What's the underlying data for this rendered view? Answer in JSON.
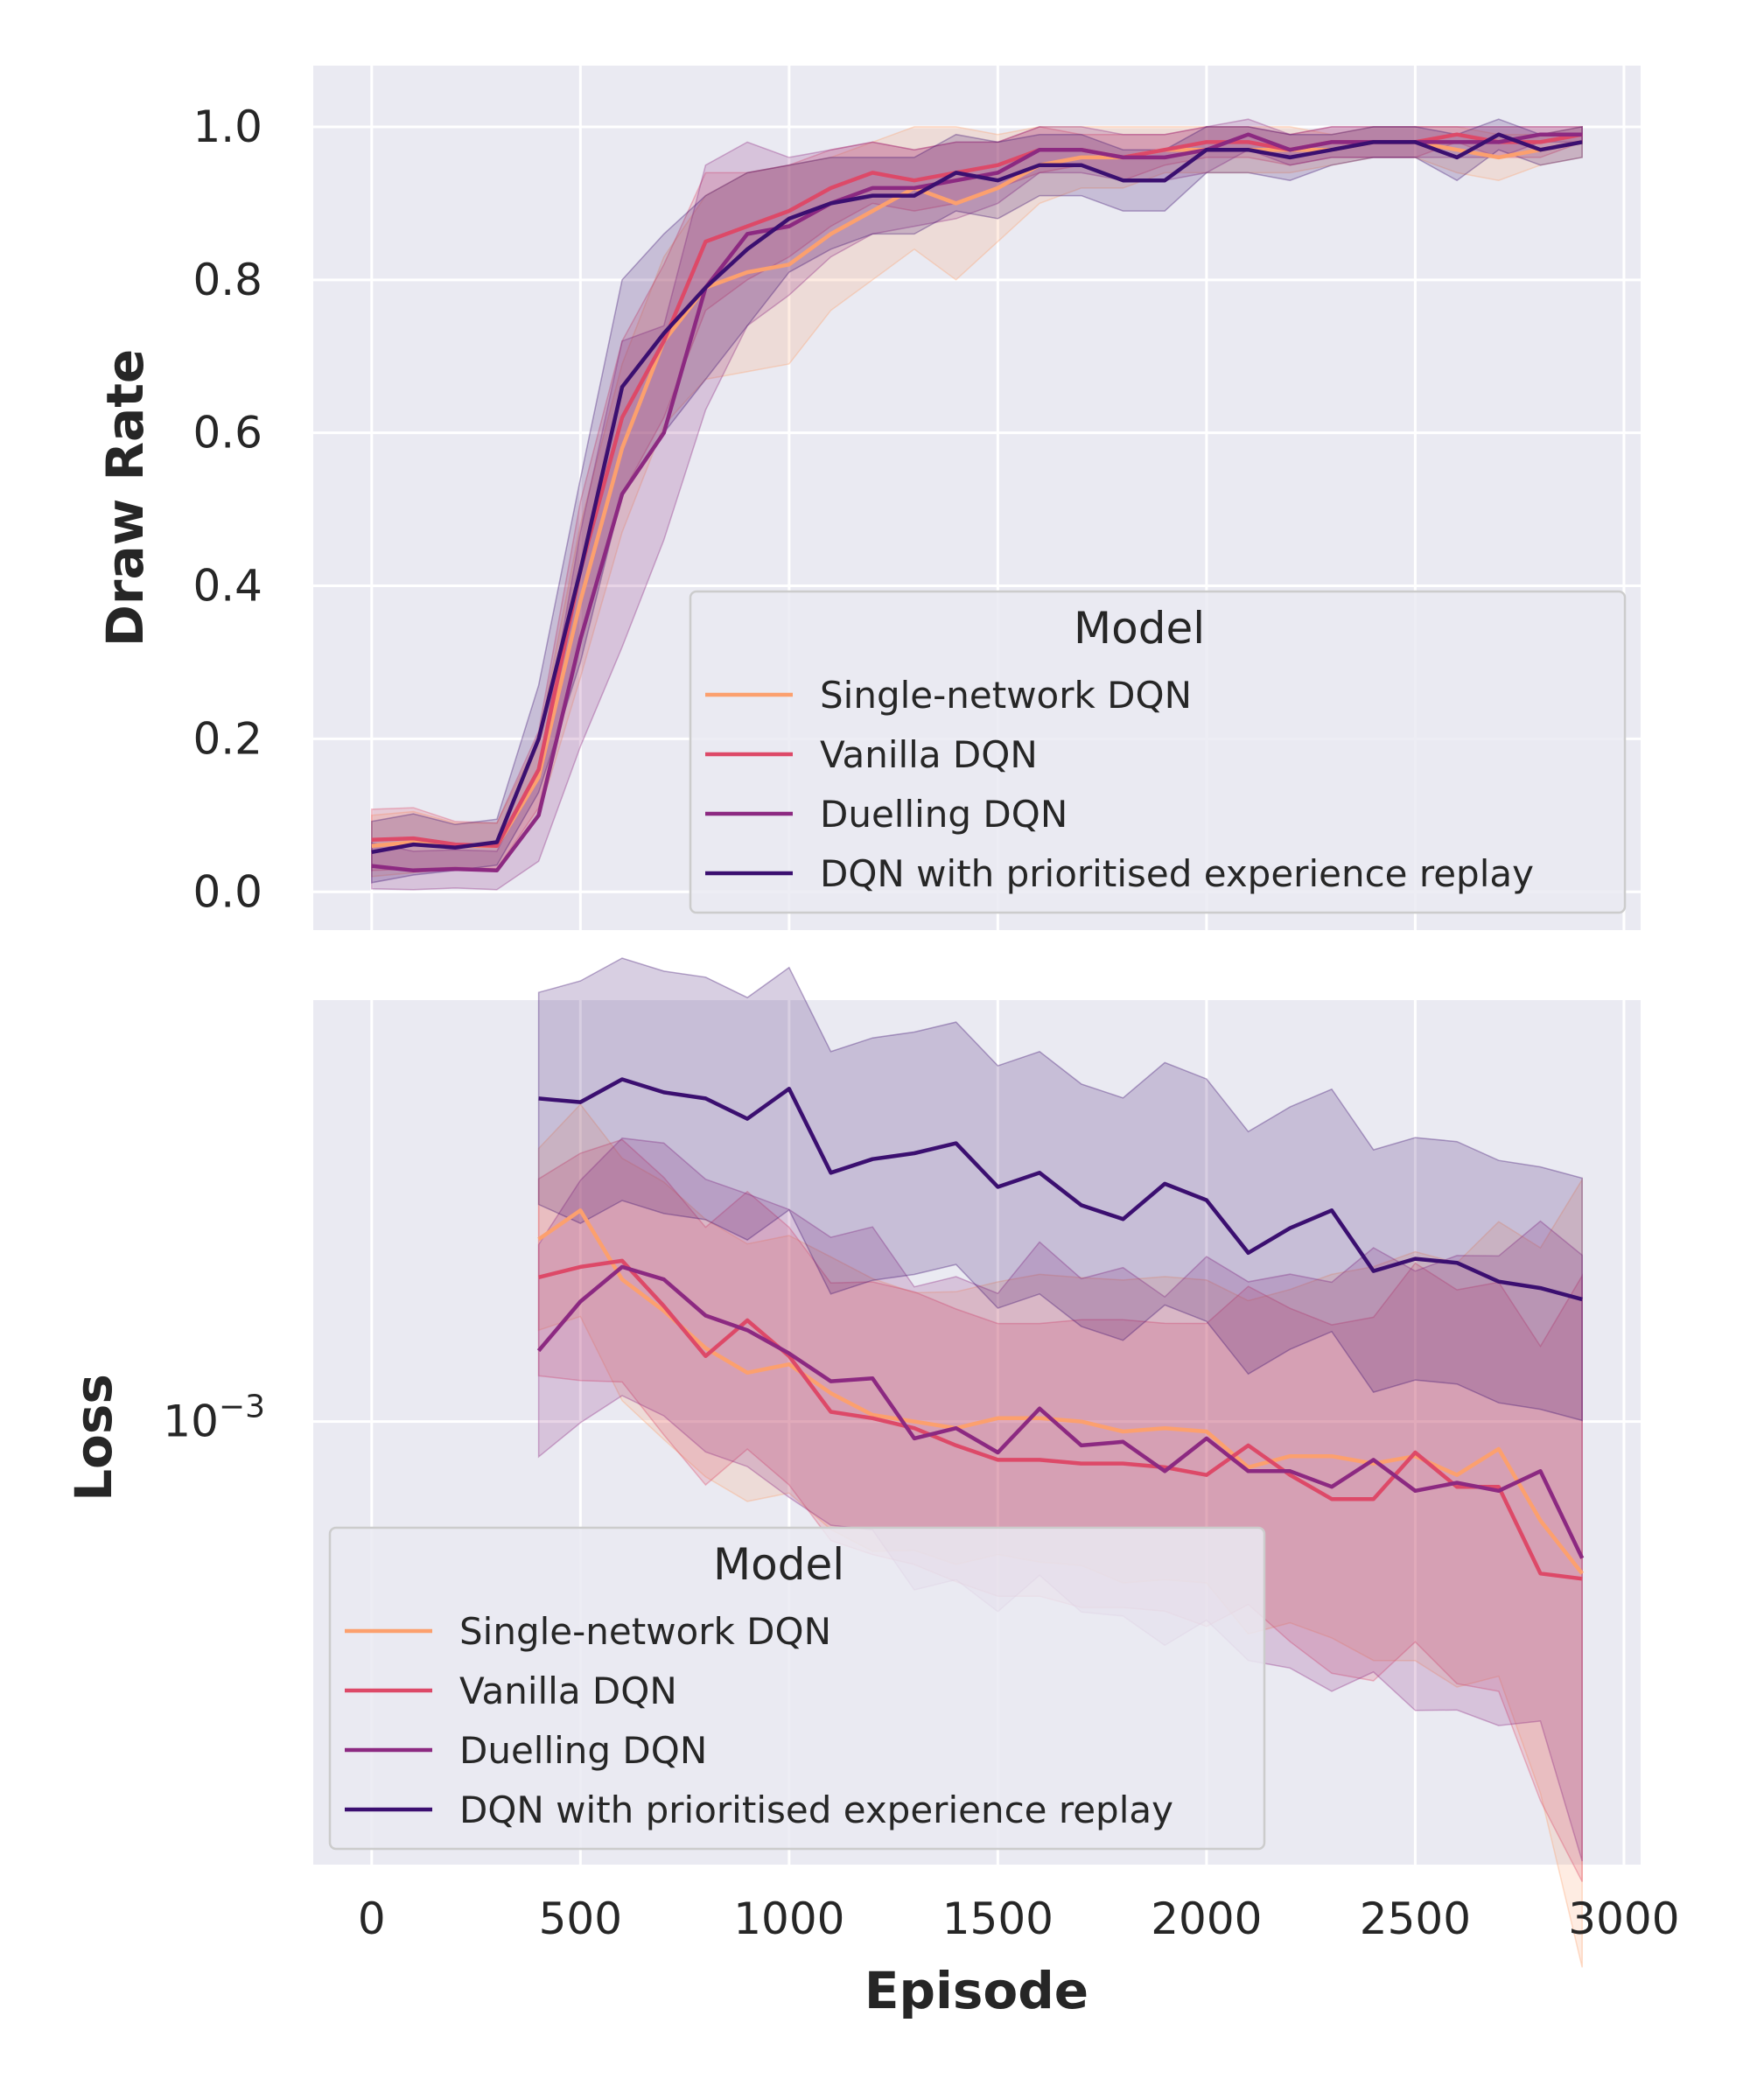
{
  "figure": {
    "xlabel": "Episode",
    "x_ticks": [
      "0",
      "500",
      "1000",
      "1500",
      "2000",
      "2500",
      "3000"
    ]
  },
  "chart_data": [
    {
      "type": "line",
      "panel": "top",
      "title": "",
      "xlabel": "Episode",
      "ylabel": "Draw Rate",
      "xlim": [
        -140,
        3040
      ],
      "ylim": [
        -0.05,
        1.08
      ],
      "y_ticks": [
        "0.0",
        "0.2",
        "0.4",
        "0.6",
        "0.8",
        "1.0"
      ],
      "grid": true,
      "legend": {
        "title": "Model",
        "placement": "lower-right"
      },
      "x": [
        0,
        100,
        200,
        300,
        400,
        500,
        600,
        700,
        800,
        900,
        1000,
        1100,
        1200,
        1300,
        1400,
        1500,
        1600,
        1700,
        1800,
        1900,
        2000,
        2100,
        2200,
        2300,
        2400,
        2500,
        2600,
        2700,
        2800,
        2900
      ],
      "series": [
        {
          "name": "Single-network DQN",
          "color": "#fca06e",
          "values": [
            0.06,
            0.065,
            0.06,
            0.06,
            0.15,
            0.38,
            0.58,
            0.72,
            0.79,
            0.81,
            0.82,
            0.86,
            0.89,
            0.92,
            0.9,
            0.92,
            0.95,
            0.96,
            0.96,
            0.97,
            0.97,
            0.97,
            0.97,
            0.97,
            0.98,
            0.98,
            0.97,
            0.96,
            0.97,
            0.98
          ],
          "band": [
            0.04,
            0.04,
            0.03,
            0.03,
            0.05,
            0.1,
            0.11,
            0.11,
            0.12,
            0.13,
            0.13,
            0.1,
            0.09,
            0.08,
            0.1,
            0.07,
            0.05,
            0.04,
            0.04,
            0.03,
            0.03,
            0.03,
            0.03,
            0.02,
            0.02,
            0.02,
            0.03,
            0.03,
            0.02,
            0.02
          ]
        },
        {
          "name": "Vanilla DQN",
          "color": "#dd4968",
          "values": [
            0.068,
            0.07,
            0.062,
            0.06,
            0.16,
            0.42,
            0.62,
            0.72,
            0.85,
            0.87,
            0.89,
            0.92,
            0.94,
            0.93,
            0.94,
            0.95,
            0.97,
            0.97,
            0.96,
            0.97,
            0.98,
            0.98,
            0.97,
            0.98,
            0.98,
            0.98,
            0.99,
            0.98,
            0.98,
            0.99
          ],
          "band": [
            0.04,
            0.04,
            0.03,
            0.03,
            0.05,
            0.09,
            0.1,
            0.1,
            0.09,
            0.07,
            0.06,
            0.05,
            0.04,
            0.04,
            0.04,
            0.03,
            0.03,
            0.02,
            0.03,
            0.02,
            0.02,
            0.02,
            0.02,
            0.02,
            0.02,
            0.02,
            0.01,
            0.02,
            0.02,
            0.01
          ]
        },
        {
          "name": "Duelling DQN",
          "color": "#8c2981",
          "values": [
            0.034,
            0.028,
            0.03,
            0.028,
            0.1,
            0.33,
            0.52,
            0.6,
            0.79,
            0.86,
            0.87,
            0.9,
            0.92,
            0.92,
            0.93,
            0.94,
            0.97,
            0.97,
            0.96,
            0.96,
            0.97,
            0.99,
            0.97,
            0.98,
            0.98,
            0.98,
            0.98,
            0.98,
            0.99,
            0.99
          ],
          "band": [
            0.03,
            0.025,
            0.025,
            0.025,
            0.06,
            0.14,
            0.2,
            0.14,
            0.16,
            0.12,
            0.09,
            0.07,
            0.06,
            0.05,
            0.05,
            0.04,
            0.03,
            0.03,
            0.03,
            0.03,
            0.03,
            0.02,
            0.02,
            0.02,
            0.02,
            0.02,
            0.02,
            0.02,
            0.01,
            0.01
          ]
        },
        {
          "name": "DQN with prioritised experience replay",
          "color": "#3b0f70",
          "values": [
            0.052,
            0.062,
            0.058,
            0.065,
            0.2,
            0.42,
            0.66,
            0.73,
            0.79,
            0.84,
            0.88,
            0.9,
            0.91,
            0.91,
            0.94,
            0.93,
            0.95,
            0.95,
            0.93,
            0.93,
            0.97,
            0.97,
            0.96,
            0.97,
            0.98,
            0.98,
            0.96,
            0.99,
            0.97,
            0.98
          ],
          "band": [
            0.04,
            0.04,
            0.03,
            0.03,
            0.07,
            0.12,
            0.14,
            0.13,
            0.12,
            0.1,
            0.07,
            0.06,
            0.05,
            0.05,
            0.05,
            0.05,
            0.04,
            0.04,
            0.04,
            0.04,
            0.03,
            0.03,
            0.03,
            0.02,
            0.02,
            0.02,
            0.03,
            0.02,
            0.02,
            0.02
          ]
        }
      ]
    },
    {
      "type": "line",
      "panel": "bottom",
      "title": "",
      "xlabel": "Episode",
      "ylabel": "Loss",
      "yscale": "log",
      "xlim": [
        -140,
        3040
      ],
      "ylim": [
        0.00026,
        0.0036
      ],
      "y_ticks": [
        {
          "value": 0.001,
          "base": "10",
          "exponent": "−3"
        }
      ],
      "grid": true,
      "legend": {
        "title": "Model",
        "placement": "lower-left"
      },
      "x": [
        400,
        500,
        600,
        700,
        800,
        900,
        1000,
        1100,
        1200,
        1300,
        1400,
        1500,
        1600,
        1700,
        1800,
        1900,
        2000,
        2100,
        2200,
        2300,
        2400,
        2500,
        2600,
        2700,
        2800,
        2900
      ],
      "series": [
        {
          "name": "Single-network DQN",
          "color": "#fca06e",
          "values": [
            0.00174,
            0.0019,
            0.00154,
            0.0014,
            0.00125,
            0.00116,
            0.00119,
            0.00109,
            0.00102,
            0.001,
            0.00098,
            0.00101,
            0.00101,
            0.001,
            0.00097,
            0.00098,
            0.00097,
            0.00087,
            0.0009,
            0.0009,
            0.00088,
            0.0009,
            0.00085,
            0.00092,
            0.00074,
            0.00063
          ],
          "band": [
            0.12,
            0.14,
            0.16,
            0.17,
            0.17,
            0.17,
            0.17,
            0.18,
            0.18,
            0.17,
            0.18,
            0.18,
            0.19,
            0.19,
            0.2,
            0.2,
            0.2,
            0.22,
            0.22,
            0.24,
            0.26,
            0.27,
            0.28,
            0.3,
            0.36,
            0.52
          ]
        },
        {
          "name": "Vanilla DQN",
          "color": "#dd4968",
          "values": [
            0.00155,
            0.0016,
            0.00163,
            0.00142,
            0.00122,
            0.00136,
            0.00122,
            0.00103,
            0.00101,
            0.00098,
            0.00093,
            0.00089,
            0.00089,
            0.00088,
            0.00088,
            0.00087,
            0.00085,
            0.00093,
            0.00085,
            0.00079,
            0.00079,
            0.00091,
            0.00082,
            0.00082,
            0.00063,
            0.00062
          ],
          "band": [
            0.13,
            0.15,
            0.16,
            0.17,
            0.17,
            0.17,
            0.17,
            0.17,
            0.18,
            0.18,
            0.18,
            0.18,
            0.18,
            0.19,
            0.19,
            0.19,
            0.2,
            0.21,
            0.22,
            0.23,
            0.24,
            0.25,
            0.26,
            0.27,
            0.3,
            0.4
          ]
        },
        {
          "name": "Duelling DQN",
          "color": "#8c2981",
          "values": [
            0.00124,
            0.00144,
            0.0016,
            0.00154,
            0.00138,
            0.00132,
            0.00123,
            0.00113,
            0.00114,
            0.00095,
            0.00098,
            0.00091,
            0.00104,
            0.00093,
            0.00094,
            0.00086,
            0.00095,
            0.00086,
            0.00086,
            0.00082,
            0.00089,
            0.00081,
            0.00083,
            0.00081,
            0.00086,
            0.00066
          ],
          "band": [
            0.14,
            0.16,
            0.17,
            0.18,
            0.18,
            0.18,
            0.19,
            0.19,
            0.2,
            0.2,
            0.2,
            0.21,
            0.22,
            0.22,
            0.23,
            0.23,
            0.24,
            0.25,
            0.26,
            0.27,
            0.28,
            0.29,
            0.3,
            0.31,
            0.33,
            0.4
          ]
        },
        {
          "name": "DQN with prioritised experience replay",
          "color": "#3b0f70",
          "values": [
            0.00267,
            0.00264,
            0.00283,
            0.00272,
            0.00267,
            0.00251,
            0.00275,
            0.00213,
            0.00222,
            0.00226,
            0.00233,
            0.00204,
            0.00213,
            0.00193,
            0.00185,
            0.00206,
            0.00196,
            0.00167,
            0.0018,
            0.0019,
            0.00158,
            0.00164,
            0.00162,
            0.00153,
            0.0015,
            0.00145
          ],
          "band": [
            0.14,
            0.16,
            0.16,
            0.16,
            0.16,
            0.16,
            0.16,
            0.16,
            0.16,
            0.16,
            0.16,
            0.16,
            0.16,
            0.16,
            0.16,
            0.16,
            0.16,
            0.16,
            0.16,
            0.16,
            0.16,
            0.16,
            0.16,
            0.16,
            0.16,
            0.16
          ]
        }
      ]
    }
  ]
}
